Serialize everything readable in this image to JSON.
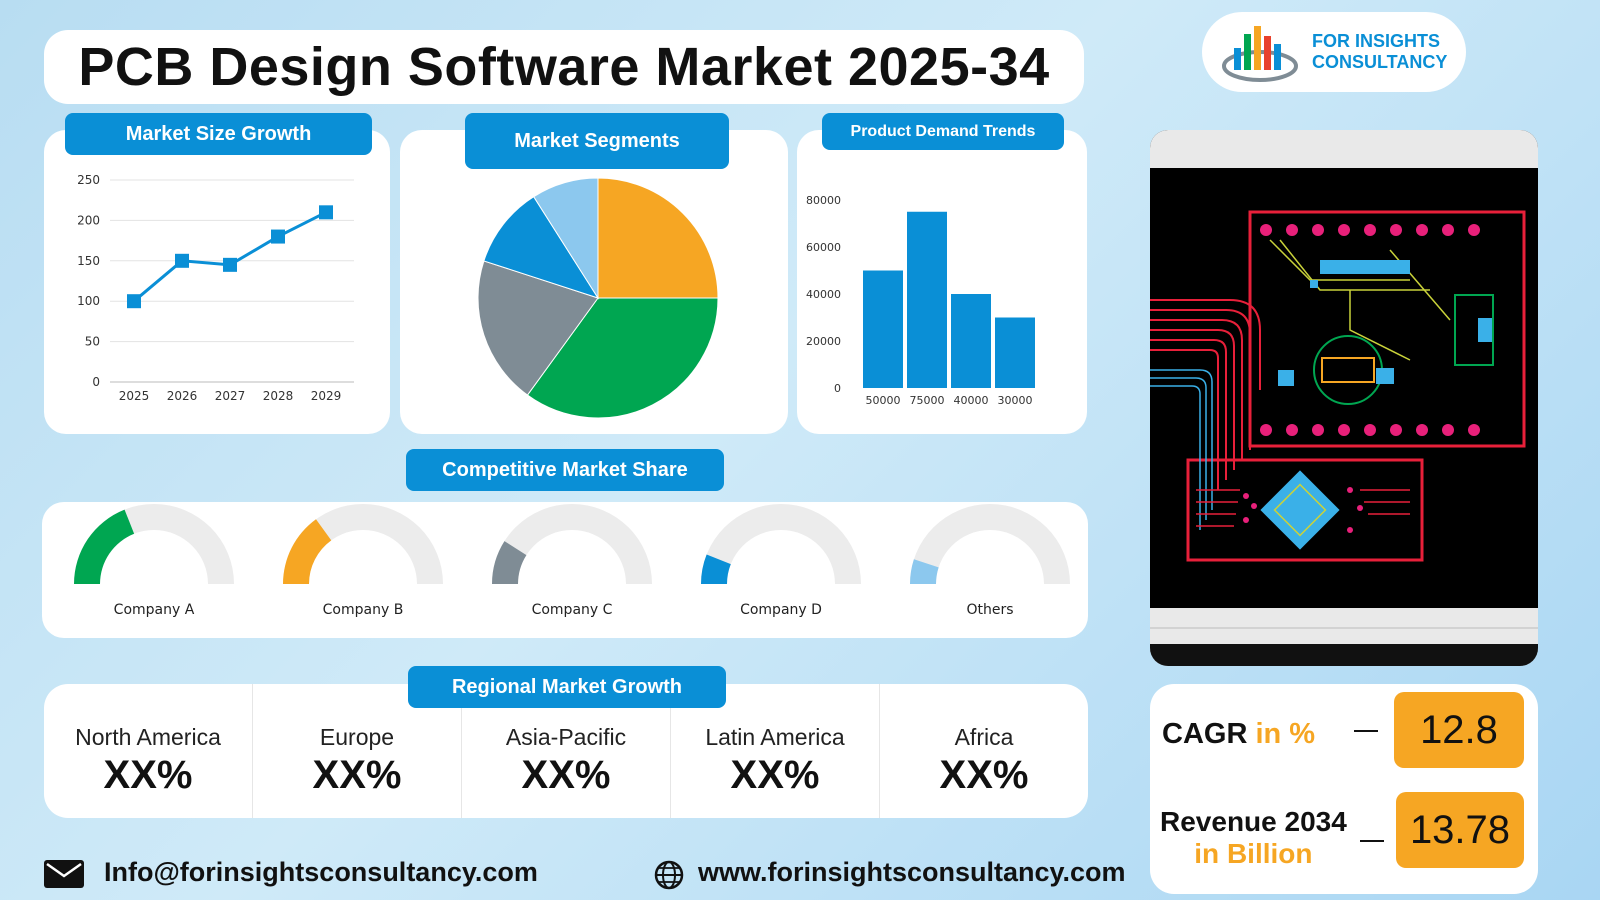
{
  "header": {
    "title": "PCB Design Software Market 2025-34"
  },
  "brand": {
    "line1": "FOR INSIGHTS",
    "line2": "CONSULTANCY",
    "color": "#0a8fd6"
  },
  "colors": {
    "orange": "#f6a623",
    "green": "#00a651",
    "gray": "#7f8c95",
    "blue": "#0a8fd6",
    "lightblue": "#8cc8ee"
  },
  "panels": {
    "market_size": "Market Size Growth",
    "segments": "Market Segments",
    "demand": "Product Demand Trends",
    "competitive": "Competitive Market Share",
    "regional": "Regional Market Growth"
  },
  "chart_data": [
    {
      "type": "line",
      "x": [
        "2025",
        "2026",
        "2027",
        "2028",
        "2029"
      ],
      "values": [
        100,
        150,
        145,
        180,
        210
      ],
      "ylim": [
        0,
        250
      ],
      "yticks": [
        0,
        50,
        100,
        150,
        200,
        250
      ],
      "grid": true
    },
    {
      "type": "pie",
      "slices": [
        {
          "value": 25,
          "color": "#f6a623"
        },
        {
          "value": 35,
          "color": "#00a651"
        },
        {
          "value": 20,
          "color": "#7f8c95"
        },
        {
          "value": 11,
          "color": "#0a8fd6"
        },
        {
          "value": 9,
          "color": "#8cc8ee"
        }
      ]
    },
    {
      "type": "bar",
      "categories": [
        "50000",
        "75000",
        "40000",
        "30000"
      ],
      "values": [
        50000,
        75000,
        40000,
        30000
      ],
      "ylim": [
        0,
        80000
      ],
      "yticks": [
        0,
        20000,
        40000,
        60000,
        80000
      ]
    }
  ],
  "gauges": [
    {
      "label": "Company A",
      "fraction": 0.38,
      "color": "#00a651"
    },
    {
      "label": "Company B",
      "fraction": 0.3,
      "color": "#f6a623"
    },
    {
      "label": "Company C",
      "fraction": 0.18,
      "color": "#7f8c95"
    },
    {
      "label": "Company D",
      "fraction": 0.12,
      "color": "#0a8fd6"
    },
    {
      "label": "Others",
      "fraction": 0.1,
      "color": "#8cc8ee"
    }
  ],
  "regions": [
    {
      "name": "North America",
      "value": "XX%"
    },
    {
      "name": "Europe",
      "value": "XX%"
    },
    {
      "name": "Asia-Pacific",
      "value": "XX%"
    },
    {
      "name": "Latin America",
      "value": "XX%"
    },
    {
      "name": "Africa",
      "value": "XX%"
    }
  ],
  "stats": {
    "cagr_label": "CAGR",
    "cagr_unit": "in %",
    "cagr_value": "12.8",
    "revenue_label": "Revenue 2034",
    "revenue_unit": "in Billion",
    "revenue_value": "13.78"
  },
  "footer": {
    "email": "Info@forinsightsconsultancy.com",
    "website": "www.forinsightsconsultancy.com"
  }
}
